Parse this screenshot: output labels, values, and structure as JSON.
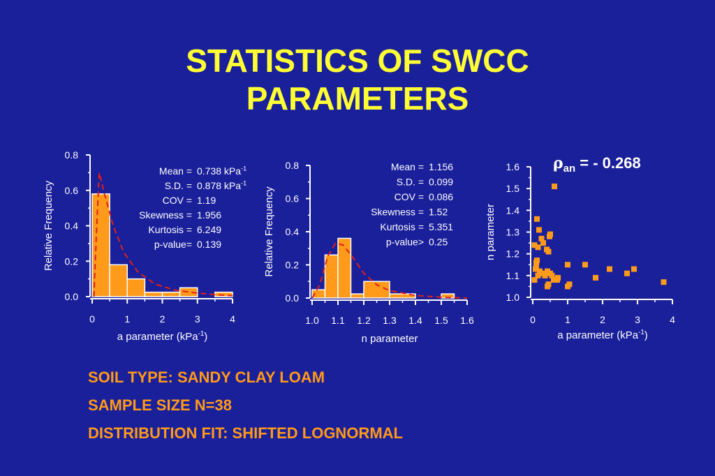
{
  "title_line1": "STATISTICS OF SWCC",
  "title_line2": "PARAMETERS",
  "info": {
    "soil_type": "SOIL TYPE: SANDY CLAY LOAM",
    "sample_size": "SAMPLE SIZE N=38",
    "distribution": "DISTRIBUTION FIT: SHIFTED LOGNORMAL"
  },
  "colors": {
    "background": "#1a1f9a",
    "title": "#ffff33",
    "bars": "#ff9a1a",
    "fit_curve": "#e0201a",
    "correlation": "#33ff66",
    "scatter": "#ff9a1a"
  },
  "chart_data": [
    {
      "type": "bar",
      "xlabel": "a parameter (kPa",
      "xlabel_sup": "-1",
      "xlabel_end": ")",
      "ylabel": "Relative Frequency",
      "xlim": [
        0,
        4
      ],
      "ylim": [
        0,
        0.8
      ],
      "x_ticks": [
        "0",
        "1",
        "2",
        "3",
        "4"
      ],
      "y_ticks": [
        "0.0",
        "0.2",
        "0.4",
        "0.6",
        "0.8"
      ],
      "bins": [
        [
          0,
          0.5
        ],
        [
          0.5,
          1
        ],
        [
          1,
          1.5
        ],
        [
          1.5,
          2
        ],
        [
          2,
          2.5
        ],
        [
          2.5,
          3
        ],
        [
          3,
          3.5
        ],
        [
          3.5,
          4
        ]
      ],
      "values": [
        0.58,
        0.18,
        0.1,
        0.025,
        0.025,
        0.05,
        0.0,
        0.025
      ],
      "fit_curve": [
        [
          0.05,
          0.0
        ],
        [
          0.12,
          0.35
        ],
        [
          0.2,
          0.7
        ],
        [
          0.35,
          0.58
        ],
        [
          0.6,
          0.4
        ],
        [
          0.9,
          0.25
        ],
        [
          1.3,
          0.14
        ],
        [
          1.8,
          0.07
        ],
        [
          2.4,
          0.035
        ],
        [
          3.0,
          0.02
        ],
        [
          3.6,
          0.01
        ],
        [
          4.0,
          0.005
        ]
      ],
      "stats": [
        {
          "label": "Mean =",
          "value": "0.738 kPa",
          "sup": "-1"
        },
        {
          "label": "S.D. =",
          "value": "0.878 kPa",
          "sup": "-1"
        },
        {
          "label": "COV =",
          "value": "1.19"
        },
        {
          "label": "Skewness =",
          "value": "1.956"
        },
        {
          "label": "Kurtosis =",
          "value": "6.249"
        },
        {
          "label": "p-value=",
          "value": "0.139"
        }
      ]
    },
    {
      "type": "bar",
      "xlabel": "n parameter",
      "ylabel": "Relative Frequency",
      "xlim": [
        1.0,
        1.6
      ],
      "ylim": [
        0,
        0.8
      ],
      "x_ticks": [
        "1.0",
        "1.1",
        "1.2",
        "1.3",
        "1.4",
        "1.5",
        "1.6"
      ],
      "y_ticks": [
        "0.0",
        "0.2",
        "0.4",
        "0.6",
        "0.8"
      ],
      "bins": [
        [
          1.0,
          1.05
        ],
        [
          1.05,
          1.1
        ],
        [
          1.1,
          1.15
        ],
        [
          1.15,
          1.2
        ],
        [
          1.2,
          1.3
        ],
        [
          1.3,
          1.4
        ],
        [
          1.4,
          1.5
        ],
        [
          1.5,
          1.55
        ]
      ],
      "values": [
        0.05,
        0.26,
        0.36,
        0.025,
        0.1,
        0.025,
        0.0,
        0.025
      ],
      "fit_curve": [
        [
          1.0,
          0.0
        ],
        [
          1.03,
          0.08
        ],
        [
          1.06,
          0.25
        ],
        [
          1.09,
          0.33
        ],
        [
          1.12,
          0.32
        ],
        [
          1.16,
          0.24
        ],
        [
          1.2,
          0.15
        ],
        [
          1.25,
          0.08
        ],
        [
          1.3,
          0.045
        ],
        [
          1.4,
          0.015
        ],
        [
          1.5,
          0.005
        ],
        [
          1.6,
          0.0
        ]
      ],
      "stats": [
        {
          "label": "Mean =",
          "value": "1.156"
        },
        {
          "label": "S.D. =",
          "value": "0.099"
        },
        {
          "label": "COV =",
          "value": "0.086"
        },
        {
          "label": "Skewness =",
          "value": "1.52"
        },
        {
          "label": "Kurtosis =",
          "value": "5.351"
        },
        {
          "label": "p-value>",
          "value": "0.25"
        }
      ]
    },
    {
      "type": "scatter",
      "xlabel": "a parameter (kPa",
      "xlabel_sup": "-1",
      "xlabel_end": ")",
      "ylabel": "n parameter",
      "xlim": [
        0,
        4
      ],
      "ylim": [
        1.0,
        1.6
      ],
      "x_ticks": [
        "0",
        "1",
        "2",
        "3",
        "4"
      ],
      "y_ticks": [
        "1.0",
        "1.1",
        "1.2",
        "1.3",
        "1.4",
        "1.5",
        "1.6"
      ],
      "annotation": {
        "symbol": "ρ",
        "sub": "an",
        "text": " = - 0.268"
      },
      "points": [
        [
          0.62,
          1.51
        ],
        [
          0.12,
          1.36
        ],
        [
          0.18,
          1.31
        ],
        [
          0.25,
          1.27
        ],
        [
          0.5,
          1.29
        ],
        [
          0.48,
          1.28
        ],
        [
          0.3,
          1.25
        ],
        [
          0.05,
          1.24
        ],
        [
          0.15,
          1.23
        ],
        [
          0.4,
          1.22
        ],
        [
          0.45,
          1.21
        ],
        [
          0.12,
          1.17
        ],
        [
          0.1,
          1.16
        ],
        [
          0.1,
          1.14
        ],
        [
          0.08,
          1.13
        ],
        [
          0.2,
          1.12
        ],
        [
          0.3,
          1.11
        ],
        [
          0.42,
          1.12
        ],
        [
          0.5,
          1.11
        ],
        [
          0.15,
          1.1
        ],
        [
          0.35,
          1.1
        ],
        [
          0.55,
          1.1
        ],
        [
          0.72,
          1.09
        ],
        [
          0.05,
          1.08
        ],
        [
          0.6,
          1.08
        ],
        [
          0.7,
          1.08
        ],
        [
          0.45,
          1.06
        ],
        [
          0.42,
          1.05
        ],
        [
          1.05,
          1.06
        ],
        [
          1.0,
          1.05
        ],
        [
          1.0,
          1.15
        ],
        [
          1.5,
          1.15
        ],
        [
          1.8,
          1.09
        ],
        [
          2.2,
          1.13
        ],
        [
          2.7,
          1.11
        ],
        [
          2.9,
          1.13
        ],
        [
          3.75,
          1.07
        ]
      ]
    }
  ]
}
